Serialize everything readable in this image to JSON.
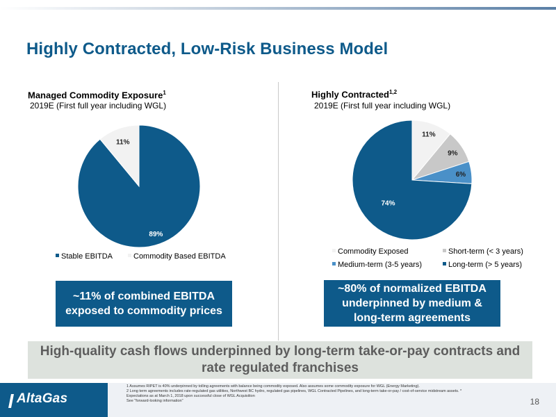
{
  "page": {
    "title": "Highly Contracted, Low-Risk Business Model",
    "banner": "High-quality cash flows underpinned by long-term take-or-pay contracts and rate regulated franchises",
    "page_number": "18"
  },
  "chart_data": [
    {
      "type": "pie",
      "title": "Managed Commodity Exposure",
      "title_sup": "1",
      "subtitle": "2019E (First full year including WGL)",
      "slices": [
        {
          "name": "Stable EBITDA",
          "value": 89,
          "label": "89%",
          "color": "#0e5a8a"
        },
        {
          "name": "Commodity Based EBITDA",
          "value": 11,
          "label": "11%",
          "color": "#f2f2f2"
        }
      ],
      "legend": "bottom",
      "callout": "~11% of combined EBITDA exposed to commodity prices"
    },
    {
      "type": "pie",
      "title": "Highly Contracted",
      "title_sup": "1,2",
      "subtitle": "2019E (First full year including WGL)",
      "slices": [
        {
          "name": "Commodity Exposed",
          "value": 11,
          "label": "11%",
          "color": "#f2f2f2"
        },
        {
          "name": "Short-term (< 3 years)",
          "value": 9,
          "label": "9%",
          "color": "#c8c8c8"
        },
        {
          "name": "Medium-term (3-5 years)",
          "value": 6,
          "label": "6%",
          "color": "#4a90c8"
        },
        {
          "name": "Long-term (> 5 years)",
          "value": 74,
          "label": "74%",
          "color": "#0e5a8a"
        }
      ],
      "legend": "bottom",
      "callout": "~80% of normalized EBITDA underpinned by medium & long-term agreements"
    }
  ],
  "footer": {
    "logo": "AltaGas",
    "notes": [
      "1 Assumes RIPET is 40% underpinned by tolling agreements with balance being commodity exposed.  Also assumes some commodity exposure for WGL (Energy Marketing).",
      "2 Long term agreements includes rate-regulated gas utilities, Northwest BC hydro, regulated gas pipelines, WGL Contracted Pipelines, and long-term take-or-pay / cost-of-service midstream assets. *",
      "Expectations as at  March 1, 2018 upon successful close of WGL Acquisition",
      "See \"forward-looking information\""
    ]
  }
}
